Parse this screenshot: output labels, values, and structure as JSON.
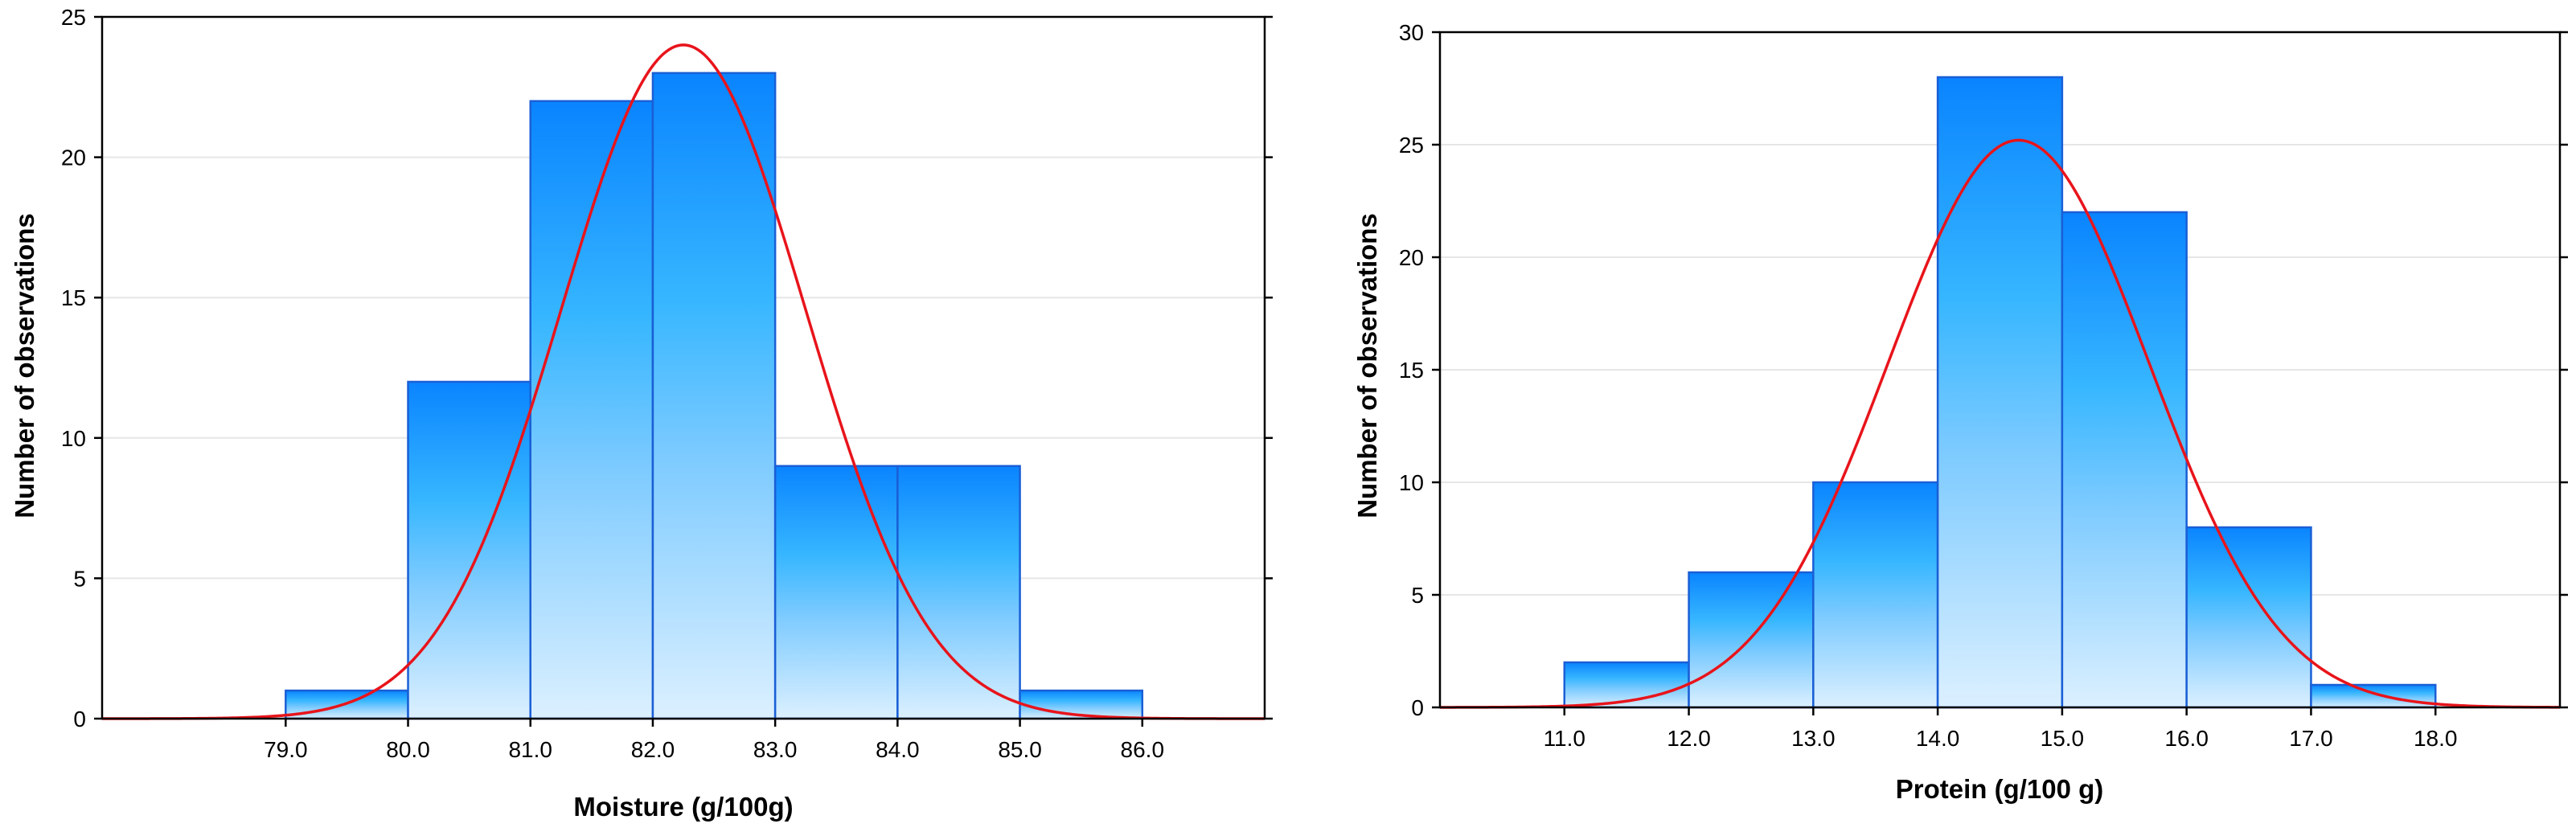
{
  "colors": {
    "curve": "#e8141b",
    "bar_stroke": "#1a5fd6",
    "bar_top_dark": "#0a84ff",
    "bar_mid": "#36b6ff",
    "bar_low": "#7ecbff",
    "bar_bottom": "#dcf0ff",
    "grid": "#e6e6e6"
  },
  "chart_data": [
    {
      "type": "bar",
      "title": "",
      "xlabel": "Moisture (g/100g)",
      "ylabel": "Number of observations",
      "xlim": [
        77.5,
        87.0
      ],
      "ylim": [
        0,
        25
      ],
      "yticks": [
        0,
        5,
        10,
        15,
        20,
        25
      ],
      "ytick_labels": [
        "0",
        "5",
        "10",
        "15",
        "20",
        "25"
      ],
      "xticks": [
        79.0,
        80.0,
        81.0,
        82.0,
        83.0,
        84.0,
        85.0,
        86.0
      ],
      "xtick_labels": [
        "79.0",
        "80.0",
        "81.0",
        "82.0",
        "83.0",
        "84.0",
        "85.0",
        "86.0"
      ],
      "bins": [
        {
          "from": 79.0,
          "to": 80.0,
          "count": 1
        },
        {
          "from": 80.0,
          "to": 81.0,
          "count": 12
        },
        {
          "from": 81.0,
          "to": 82.0,
          "count": 22
        },
        {
          "from": 82.0,
          "to": 83.0,
          "count": 23
        },
        {
          "from": 83.0,
          "to": 84.0,
          "count": 9
        },
        {
          "from": 84.0,
          "to": 85.0,
          "count": 9
        },
        {
          "from": 85.0,
          "to": 86.0,
          "count": 1
        }
      ],
      "normal_curve": {
        "mean": 82.25,
        "sd": 1.0,
        "peak": 24.0
      }
    },
    {
      "type": "bar",
      "title": "",
      "xlabel": "Protein (g/100 g)",
      "ylabel": "Number of observations",
      "xlim": [
        10.0,
        19.0
      ],
      "ylim": [
        0,
        30
      ],
      "yticks": [
        0,
        5,
        10,
        15,
        20,
        25,
        30
      ],
      "ytick_labels": [
        "0",
        "5",
        "10",
        "15",
        "20",
        "25",
        "30"
      ],
      "xticks": [
        11.0,
        12.0,
        13.0,
        14.0,
        15.0,
        16.0,
        17.0,
        18.0
      ],
      "xtick_labels": [
        "11.0",
        "12.0",
        "13.0",
        "14.0",
        "15.0",
        "16.0",
        "17.0",
        "18.0"
      ],
      "bins": [
        {
          "from": 11.0,
          "to": 12.0,
          "count": 2
        },
        {
          "from": 12.0,
          "to": 13.0,
          "count": 6
        },
        {
          "from": 13.0,
          "to": 14.0,
          "count": 10
        },
        {
          "from": 14.0,
          "to": 15.0,
          "count": 28
        },
        {
          "from": 15.0,
          "to": 16.0,
          "count": 22
        },
        {
          "from": 16.0,
          "to": 17.0,
          "count": 8
        },
        {
          "from": 17.0,
          "to": 18.0,
          "count": 1
        }
      ],
      "normal_curve": {
        "mean": 14.65,
        "sd": 1.05,
        "peak": 25.2
      }
    }
  ]
}
